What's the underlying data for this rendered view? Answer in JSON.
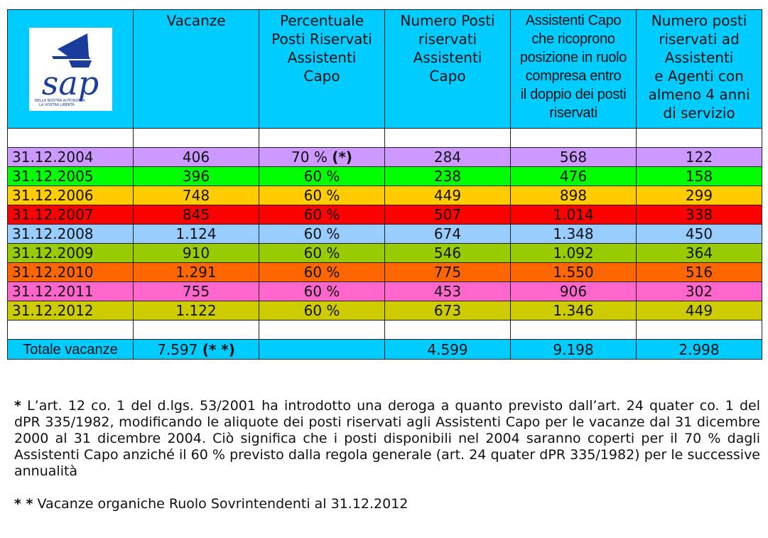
{
  "headers": {
    "vacanze": "Vacanze",
    "percentuale": [
      "Percentuale",
      "Posti Riservati",
      "Assistenti",
      "Capo"
    ],
    "numero_posti": [
      "Numero Posti",
      "riservati",
      "Assistenti",
      "Capo"
    ],
    "assistenti_capo": [
      "Assistenti Capo",
      "che ricoprono",
      "posizione in ruolo",
      "compresa entro",
      "il doppio dei posti",
      "riservati"
    ],
    "numero_posti_agenti": [
      "Numero posti",
      "riservati ad",
      "Assistenti",
      "e Agenti con",
      "almeno 4 anni",
      "di servizio"
    ]
  },
  "logo": {
    "text": "sap",
    "tagline1": "NELLA NOSTRA AUTONOMIA",
    "tagline2": "LA VOSTRA LIBERTÀ",
    "color": "#1a3c9c"
  },
  "rows": [
    {
      "date": "31.12.2004",
      "vacanze": "406",
      "perc": "70 %",
      "perc_note": "(*)",
      "posti": "284",
      "capo": "568",
      "agenti": "122",
      "color": "#cc99ff"
    },
    {
      "date": "31.12.2005",
      "vacanze": "396",
      "perc": "60 %",
      "perc_note": "",
      "posti": "238",
      "capo": "476",
      "agenti": "158",
      "color": "#00ff00"
    },
    {
      "date": "31.12.2006",
      "vacanze": "748",
      "perc": "60 %",
      "perc_note": "",
      "posti": "449",
      "capo": "898",
      "agenti": "299",
      "color": "#ffcc00"
    },
    {
      "date": "31.12.2007",
      "vacanze": "845",
      "perc": "60 %",
      "perc_note": "",
      "posti": "507",
      "capo": "1.014",
      "agenti": "338",
      "color": "#ff0000"
    },
    {
      "date": "31.12.2008",
      "vacanze": "1.124",
      "perc": "60 %",
      "perc_note": "",
      "posti": "674",
      "capo": "1.348",
      "agenti": "450",
      "color": "#99ccff"
    },
    {
      "date": "31.12.2009",
      "vacanze": "910",
      "perc": "60 %",
      "perc_note": "",
      "posti": "546",
      "capo": "1.092",
      "agenti": "364",
      "color": "#99cc00"
    },
    {
      "date": "31.12.2010",
      "vacanze": "1.291",
      "perc": "60 %",
      "perc_note": "",
      "posti": "775",
      "capo": "1.550",
      "agenti": "516",
      "color": "#ff6600"
    },
    {
      "date": "31.12.2011",
      "vacanze": "755",
      "perc": "60 %",
      "perc_note": "",
      "posti": "453",
      "capo": "906",
      "agenti": "302",
      "color": "#ff66cc"
    },
    {
      "date": "31.12.2012",
      "vacanze": "1.122",
      "perc": "60 %",
      "perc_note": "",
      "posti": "673",
      "capo": "1.346",
      "agenti": "449",
      "color": "#cccc00"
    }
  ],
  "total": {
    "label": "Totale vacanze",
    "vacanze": "7.597",
    "vacanze_note": "(* *)",
    "posti": "4.599",
    "capo": "9.198",
    "agenti": "2.998",
    "color": "#00ccff"
  },
  "notes": {
    "note1_mark": "*",
    "note1": " L’art. 12 co. 1 del d.lgs. 53/2001 ha introdotto una deroga a quanto previsto dall’art. 24 quater co. 1 del dPR 335/1982, modificando le aliquote dei posti riservati agli Assistenti Capo per le vacanze dal 31 dicembre 2000 al 31 dicembre 2004. Ciò significa che i posti disponibili nel 2004 saranno coperti per il 70 % dagli Assistenti Capo anziché il 60 % previsto dalla regola generale (art. 24 quater dPR 335/1982) per le successive annualità",
    "note2_mark": "* *",
    "note2": " Vacanze organiche Ruolo Sovrintendenti al 31.12.2012"
  }
}
